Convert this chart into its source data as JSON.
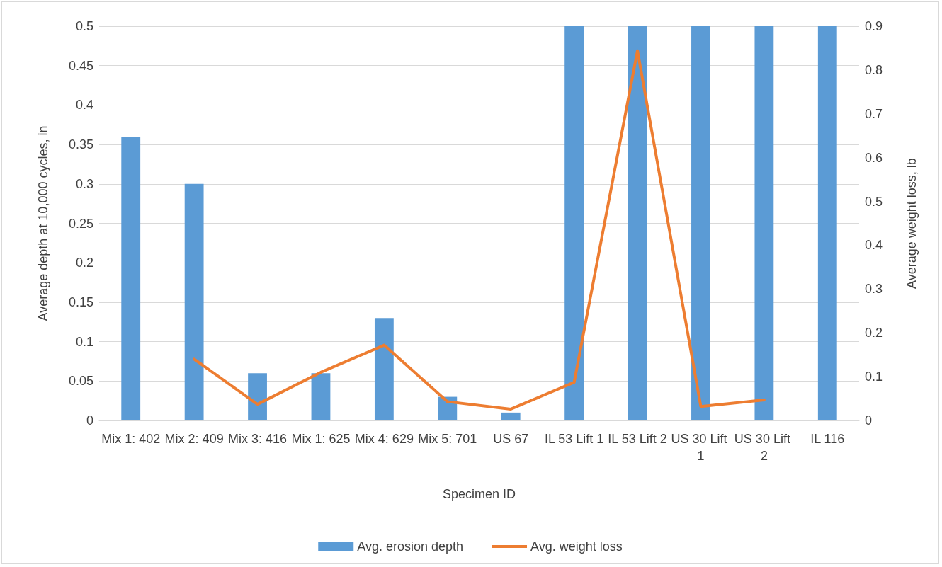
{
  "chart_data": {
    "type": "bar",
    "xlabel": "Specimen ID",
    "ylabel": "Average depth at 10,000 cycles, in",
    "y2label": "Average weight loss, lb",
    "categories": [
      "Mix 1: 402",
      "Mix 2: 409",
      "Mix 3: 416",
      "Mix 1: 625",
      "Mix 4: 629",
      "Mix 5: 701",
      "US 67",
      "IL 53 Lift 1",
      "IL 53 Lift 2",
      "US 30 Lift 1",
      "US 30 Lift 2",
      "IL 116"
    ],
    "series": [
      {
        "name": "Avg. erosion depth",
        "color": "#5b9bd5",
        "values": [
          0.36,
          0.3,
          0.06,
          0.06,
          0.13,
          0.03,
          0.01,
          0.5,
          0.5,
          0.5,
          0.5,
          0.5
        ]
      },
      {
        "name": "Avg. weight loss",
        "type": "line",
        "axis": "y2",
        "color": "#ed7d31",
        "values": [
          null,
          0.14,
          0.037,
          0.11,
          0.172,
          0.043,
          0.026,
          0.087,
          0.844,
          0.032,
          0.047,
          null
        ]
      }
    ],
    "ylim": [
      0,
      0.5
    ],
    "yticks": [
      0,
      0.05,
      0.1,
      0.15,
      0.2,
      0.25,
      0.3,
      0.35,
      0.4,
      0.45,
      0.5
    ],
    "y2lim": [
      0,
      0.9
    ],
    "y2ticks": [
      0,
      0.1,
      0.2,
      0.3,
      0.4,
      0.5,
      0.6,
      0.7,
      0.8,
      0.9
    ],
    "grid": "y",
    "legend": "bottom",
    "marker": "none",
    "line_style": "solid"
  }
}
